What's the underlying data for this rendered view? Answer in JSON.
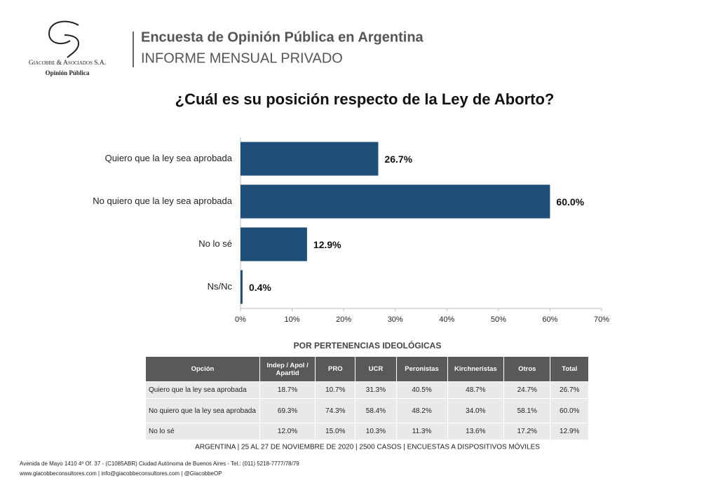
{
  "header": {
    "logo_name": "Giacobbe & Asociados S.A.",
    "logo_sub": "Opinión Pública",
    "title": "Encuesta de Opinión Pública en Argentina",
    "subtitle": "INFORME MENSUAL PRIVADO"
  },
  "chart_data": {
    "type": "bar",
    "orientation": "horizontal",
    "title": "¿Cuál es su posición respecto de la Ley de Aborto?",
    "categories": [
      "Quiero que la ley sea aprobada",
      "No quiero que la ley sea aprobada",
      "No lo sé",
      "Ns/Nc"
    ],
    "values": [
      26.7,
      60.0,
      12.9,
      0.4
    ],
    "value_labels": [
      "26.7%",
      "60.0%",
      "12.9%",
      "0.4%"
    ],
    "color": "#1f4e79",
    "xlim": [
      0,
      70
    ],
    "xticks": [
      {
        "value": 0,
        "label": "0%"
      },
      {
        "value": 10,
        "label": "10%"
      },
      {
        "value": 20,
        "label": "20%"
      },
      {
        "value": 30,
        "label": "30%"
      },
      {
        "value": 40,
        "label": "40%"
      },
      {
        "value": 50,
        "label": "50%"
      },
      {
        "value": 60,
        "label": "60%"
      },
      {
        "value": 70,
        "label": "70%"
      }
    ]
  },
  "table": {
    "title": "POR PERTENENCIAS IDEOLÓGICAS",
    "header": [
      "Opción",
      "Indep / Apol / Apartid",
      "PRO",
      "UCR",
      "Peronistas",
      "Kirchneristas",
      "Otros",
      "Total"
    ],
    "rows": [
      [
        "Quiero que la ley sea aprobada",
        "18.7%",
        "10.7%",
        "31.3%",
        "40.5%",
        "48.7%",
        "24.7%",
        "26.7%"
      ],
      [
        "No quiero que la ley sea aprobada",
        "69.3%",
        "74.3%",
        "58.4%",
        "48.2%",
        "34.0%",
        "58.1%",
        "60.0%"
      ],
      [
        "No lo sé",
        "12.0%",
        "15.0%",
        "10.3%",
        "11.3%",
        "13.6%",
        "17.2%",
        "12.9%"
      ]
    ]
  },
  "footer": {
    "survey": "ARGENTINA | 25 AL 27 DE NOVIEMBRE DE 2020 | 2500 CASOS | ENCUESTAS A DISPOSITIVOS MÓVILES",
    "address": "Avenida de Mayo 1410 4º Of. 37 - (C1085ABR) Ciudad Autónoma de Buenos Aires - Tel.: (011) 5218-7777/78/79",
    "contact": "www.giacobbeconsultores.com | info@giacobbeconsultores.com | @GiacobbeOP"
  }
}
